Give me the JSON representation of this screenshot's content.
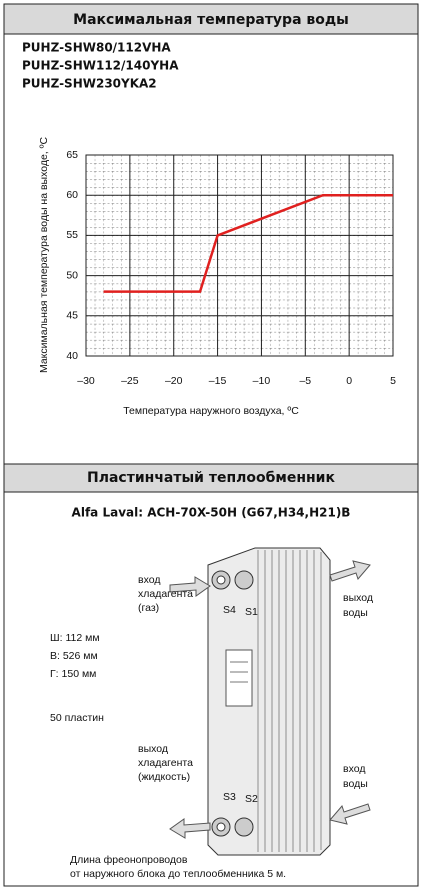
{
  "header": {
    "title": "Максимальная температура воды"
  },
  "models": [
    "PUHZ-SHW80/112VHA",
    "PUHZ-SHW112/140YHA",
    "PUHZ-SHW230YKA2"
  ],
  "chart_data": {
    "type": "line",
    "x_label": "Температура наружного воздуха, ºC",
    "y_label": "Максимальная температура воды на выходе, ºC",
    "x": [
      -28,
      -17,
      -15,
      -3,
      5
    ],
    "series": [
      {
        "color": "#e0201f",
        "values": [
          48,
          48,
          55,
          60,
          60
        ]
      }
    ],
    "xlim": [
      -30,
      5
    ],
    "xticks": [
      {
        "value": -30,
        "label": "–30"
      },
      {
        "value": -25,
        "label": "–25"
      },
      {
        "value": -20,
        "label": "–20"
      },
      {
        "value": -15,
        "label": "–15"
      },
      {
        "value": -10,
        "label": "–10"
      },
      {
        "value": -5,
        "label": "–5"
      },
      0,
      5
    ],
    "ylim": [
      40,
      65
    ],
    "yticks": [
      40,
      45,
      50,
      55,
      60,
      65
    ],
    "grid": true
  },
  "exchanger": {
    "title": "Пластинчатый теплообменник",
    "model": "Alfa Laval: ACH-70X-50H (G67,H34,H21)B",
    "inlet_refrigerant": [
      "вход",
      "хладагента",
      "(газ)"
    ],
    "outlet_water": [
      "выход",
      "воды"
    ],
    "dimensions": [
      "Ш: 112 мм",
      "В: 526 мм",
      "Г: 150 мм"
    ],
    "plates": "50 пластин",
    "outlet_refrigerant": [
      "выход",
      "хладагента",
      "(жидкость)"
    ],
    "inlet_water": [
      "вход",
      "воды"
    ],
    "port_labels": [
      "S4",
      "S1",
      "S3",
      "S2"
    ],
    "note": [
      "Длина фреонопроводов",
      "от наружного блока до теплообменника 5 м."
    ]
  }
}
